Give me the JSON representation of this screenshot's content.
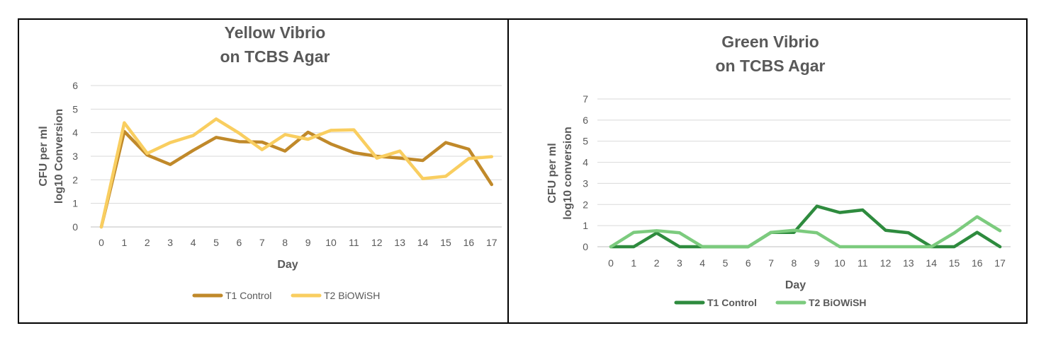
{
  "chart_data": [
    {
      "type": "line",
      "title_line1": "Yellow Vibrio",
      "title_line2": "on TCBS Agar",
      "ylabel_line1": "CFU per ml",
      "ylabel_line2": "log10 Conversion",
      "xlabel": "Day",
      "ylim": [
        0,
        6
      ],
      "yticks": [
        "0",
        "1",
        "2",
        "3",
        "4",
        "5",
        "6"
      ],
      "categories": [
        "0",
        "1",
        "2",
        "3",
        "4",
        "5",
        "6",
        "7",
        "8",
        "9",
        "10",
        "11",
        "12",
        "13",
        "14",
        "15",
        "16",
        "17"
      ],
      "grid": true,
      "legend_position": "bottom",
      "legend_bold": false,
      "series": [
        {
          "name": "T1 Control",
          "color": "#C0892A",
          "values": [
            0,
            4.05,
            3.05,
            2.65,
            3.25,
            3.8,
            3.62,
            3.6,
            3.22,
            4.02,
            3.52,
            3.15,
            3.0,
            2.92,
            2.82,
            3.58,
            3.3,
            1.8
          ]
        },
        {
          "name": "T2 BiOWiSH",
          "color": "#F9CE60",
          "values": [
            0,
            4.42,
            3.12,
            3.58,
            3.88,
            4.58,
            3.98,
            3.28,
            3.92,
            3.72,
            4.1,
            4.12,
            2.92,
            3.22,
            2.05,
            2.15,
            2.9,
            2.98
          ]
        }
      ]
    },
    {
      "type": "line",
      "title_line1": "Green Vibrio",
      "title_line2": "on TCBS Agar",
      "ylabel_line1": "CFU per ml",
      "ylabel_line2": "log10 conversion",
      "xlabel": "Day",
      "ylim": [
        0,
        7
      ],
      "yticks": [
        "0",
        "1",
        "2",
        "3",
        "4",
        "5",
        "6",
        "7"
      ],
      "categories": [
        "0",
        "1",
        "2",
        "3",
        "4",
        "5",
        "6",
        "7",
        "8",
        "9",
        "10",
        "11",
        "12",
        "13",
        "14",
        "15",
        "16",
        "17"
      ],
      "grid": true,
      "legend_position": "bottom",
      "legend_bold": true,
      "series": [
        {
          "name": "T1 Control",
          "color": "#2E8B3E",
          "values": [
            0,
            0,
            0.65,
            0,
            0,
            0,
            0,
            0.68,
            0.68,
            1.92,
            1.62,
            1.74,
            0.78,
            0.66,
            0,
            0,
            0.68,
            0
          ]
        },
        {
          "name": "T2 BiOWiSH",
          "color": "#7CCB7E",
          "values": [
            0,
            0.68,
            0.76,
            0.66,
            0,
            0,
            0,
            0.68,
            0.78,
            0.66,
            0,
            0,
            0,
            0,
            0,
            0.65,
            1.42,
            0.76
          ]
        }
      ]
    }
  ]
}
